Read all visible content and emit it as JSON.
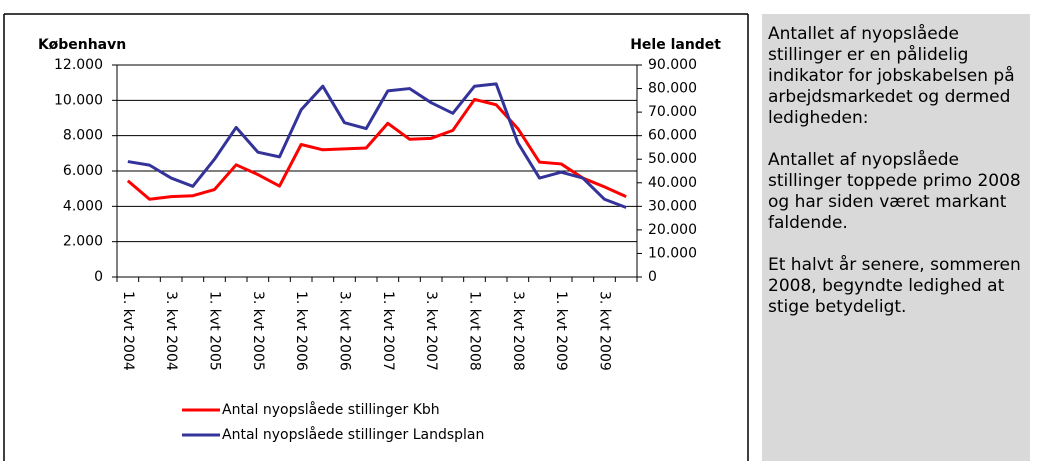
{
  "chart_data": {
    "type": "line",
    "y_label": "København",
    "y2_label": "Hele landet",
    "categories": [
      "1. kvt 2004",
      null,
      "3. kvt 2004",
      null,
      "1. kvt 2005",
      null,
      "3. kvt 2005",
      null,
      "1. kvt 2006",
      null,
      "3. kvt 2006",
      null,
      "1. kvt 2007",
      null,
      "3. kvt 2007",
      null,
      "1. kvt 2008",
      null,
      "3. kvt 2008",
      null,
      "1. kvt 2009",
      null,
      "3. kvt 2009",
      null
    ],
    "series": [
      {
        "name": "Antal nyopslåede stillinger Kbh",
        "color": "#ff0000",
        "axis": "y",
        "values": [
          5450,
          4400,
          4550,
          4600,
          4950,
          6350,
          5800,
          5150,
          7500,
          7200,
          7250,
          7300,
          8700,
          7800,
          7850,
          8300,
          10050,
          9750,
          8400,
          6500,
          6400,
          5600,
          5100,
          4550
        ]
      },
      {
        "name": "Antal nyopslåede stillinger Landsplan",
        "color": "#333399",
        "axis": "y2",
        "values": [
          49000,
          47500,
          42000,
          38500,
          50000,
          63500,
          53000,
          51000,
          71000,
          81000,
          65500,
          63000,
          79000,
          80000,
          74000,
          69500,
          81000,
          82000,
          57000,
          42000,
          44500,
          42000,
          33000,
          29500
        ]
      }
    ],
    "ylim": [
      0,
      12000
    ],
    "yticks": [
      0,
      {
        "value": 2000,
        "label": "2.000"
      },
      {
        "value": 4000,
        "label": "4.000"
      },
      {
        "value": 6000,
        "label": "6.000"
      },
      {
        "value": 8000,
        "label": "8.000"
      },
      {
        "value": 10000,
        "label": "10.000"
      },
      {
        "value": 12000,
        "label": "12.000"
      }
    ],
    "y2lim": [
      0,
      90000
    ],
    "y2ticks": [
      0,
      {
        "value": 10000,
        "label": "10.000"
      },
      {
        "value": 20000,
        "label": "20.000"
      },
      {
        "value": 30000,
        "label": "30.000"
      },
      {
        "value": 40000,
        "label": "40.000"
      },
      {
        "value": 50000,
        "label": "50.000"
      },
      {
        "value": 60000,
        "label": "60.000"
      },
      {
        "value": 70000,
        "label": "70.000"
      },
      {
        "value": 80000,
        "label": "80.000"
      },
      {
        "value": 90000,
        "label": "90.000"
      }
    ],
    "grid": true,
    "legend": "bottom"
  },
  "text_panel": {
    "paragraphs": [
      "Antallet af nyopslåede stillinger er en pålidelig indikator for jobskabelsen på arbejdsmarkedet og dermed ledigheden:",
      "Antallet af nyopslåede stillinger toppede primo 2008 og har siden været markant faldende.",
      "Et halvt år senere, sommeren 2008, begyndte ledighed at stige betydeligt."
    ]
  }
}
